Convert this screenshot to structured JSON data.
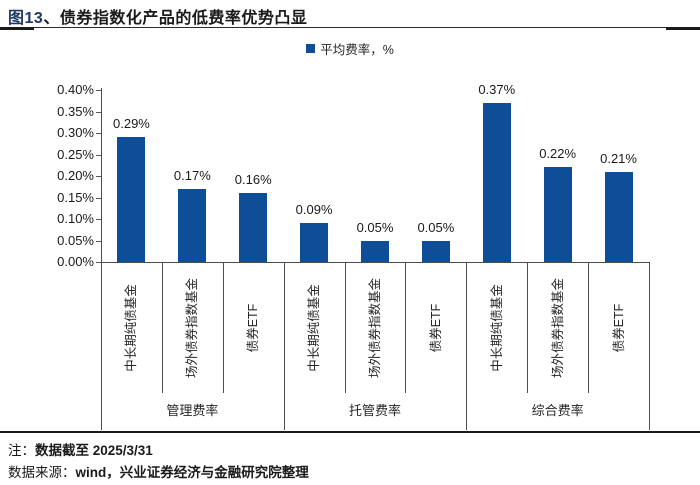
{
  "header": {
    "title_prefix": "图13",
    "title_rest": "、债券指数化产品的低费率优势凸显"
  },
  "legend": {
    "label": "平均费率，%",
    "swatch_color": "#0E4E96"
  },
  "chart_data": {
    "type": "bar",
    "title": "债券指数化产品的低费率优势凸显",
    "legend": [
      "平均费率，%"
    ],
    "legend_position": "top-center",
    "xlabel": "",
    "ylabel": "",
    "unit": "%",
    "ylim": [
      0,
      0.4
    ],
    "grid": false,
    "bar_color": "#0E4E96",
    "y_ticks": [
      "0.00%",
      "0.05%",
      "0.10%",
      "0.15%",
      "0.20%",
      "0.25%",
      "0.30%",
      "0.35%",
      "0.40%"
    ],
    "groups": [
      {
        "label": "管理费率",
        "categories": [
          "中长期纯债基金",
          "场外债券指数基金",
          "债券ETF"
        ],
        "values": [
          0.29,
          0.17,
          0.16
        ],
        "value_labels": [
          "0.29%",
          "0.17%",
          "0.16%"
        ]
      },
      {
        "label": "托管费率",
        "categories": [
          "中长期纯债基金",
          "场外债券指数基金",
          "债券ETF"
        ],
        "values": [
          0.09,
          0.05,
          0.05
        ],
        "value_labels": [
          "0.09%",
          "0.05%",
          "0.05%"
        ]
      },
      {
        "label": "综合费率",
        "categories": [
          "中长期纯债基金",
          "场外债券指数基金",
          "债券ETF"
        ],
        "values": [
          0.37,
          0.22,
          0.21
        ],
        "value_labels": [
          "0.37%",
          "0.22%",
          "0.21%"
        ]
      }
    ]
  },
  "notes": {
    "note_prefix": "注：",
    "note_value": "数据截至 2025/3/31",
    "source_prefix": "数据来源：",
    "source_value": "wind，兴业证券经济与金融研究院整理"
  }
}
